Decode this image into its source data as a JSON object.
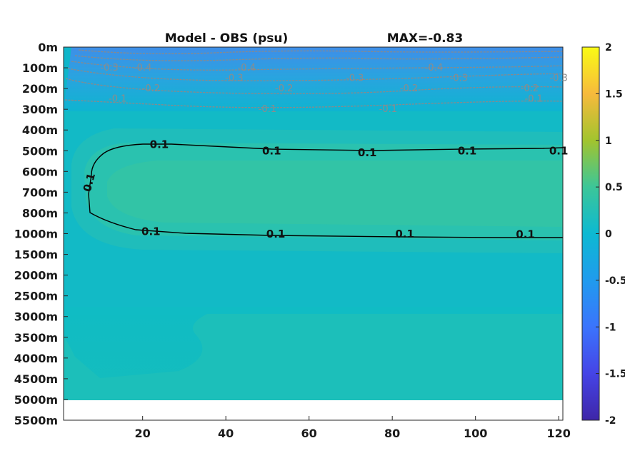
{
  "chart_data": {
    "type": "heatmap",
    "title_left": "Model - OBS (psu)",
    "title_right": "MAX=-0.83",
    "y_ticks": [
      "0m",
      "100m",
      "200m",
      "300m",
      "400m",
      "500m",
      "600m",
      "700m",
      "800m",
      "1000m",
      "1500m",
      "2000m",
      "2500m",
      "3000m",
      "3500m",
      "4000m",
      "4500m",
      "5000m",
      "5500m"
    ],
    "x_ticks": [
      "20",
      "40",
      "60",
      "80",
      "100",
      "120"
    ],
    "x_tick_values": [
      20,
      40,
      60,
      80,
      100,
      120
    ],
    "xlim": [
      1,
      121
    ],
    "colorbar": {
      "ticks": [
        "2",
        "1.5",
        "1",
        "0.5",
        "0",
        "-0.5",
        "-1",
        "-1.5",
        "-2"
      ],
      "tick_values": [
        2,
        1.5,
        1,
        0.5,
        0,
        -0.5,
        -1,
        -1.5,
        -2
      ],
      "range": [
        -2,
        2
      ],
      "colormap": "parula"
    },
    "contour_labels_negative": [
      {
        "text": "-0.3",
        "x": 12,
        "depth": "100m"
      },
      {
        "text": "-0.4",
        "x": 20,
        "depth": "100m"
      },
      {
        "text": "-0.3",
        "x": 42,
        "depth": "150m"
      },
      {
        "text": "-0.4",
        "x": 45,
        "depth": "100m"
      },
      {
        "text": "-0.3",
        "x": 71,
        "depth": "150m"
      },
      {
        "text": "-0.4",
        "x": 90,
        "depth": "100m"
      },
      {
        "text": "-0.3",
        "x": 96,
        "depth": "150m"
      },
      {
        "text": "-0.3",
        "x": 120,
        "depth": "150m"
      },
      {
        "text": "-0.2",
        "x": 22,
        "depth": "200m"
      },
      {
        "text": "-0.2",
        "x": 54,
        "depth": "200m"
      },
      {
        "text": "-0.2",
        "x": 84,
        "depth": "200m"
      },
      {
        "text": "-0.2",
        "x": 113,
        "depth": "200m"
      },
      {
        "text": "-0.1",
        "x": 14,
        "depth": "250m"
      },
      {
        "text": "-0.1",
        "x": 50,
        "depth": "300m"
      },
      {
        "text": "-0.1",
        "x": 79,
        "depth": "300m"
      },
      {
        "text": "-0.1",
        "x": 114,
        "depth": "250m"
      }
    ],
    "contour_labels_positive": [
      {
        "text": "0.1",
        "x": 24,
        "depth": "470m"
      },
      {
        "text": "0.1",
        "x": 51,
        "depth": "500m"
      },
      {
        "text": "0.1",
        "x": 74,
        "depth": "510m"
      },
      {
        "text": "0.1",
        "x": 98,
        "depth": "500m"
      },
      {
        "text": "0.1",
        "x": 120,
        "depth": "500m"
      },
      {
        "text": "0.1",
        "x": 8,
        "depth": "640m"
      },
      {
        "text": "0.1",
        "x": 22,
        "depth": "980m"
      },
      {
        "text": "0.1",
        "x": 52,
        "depth": "1010m"
      },
      {
        "text": "0.1",
        "x": 83,
        "depth": "1010m"
      },
      {
        "text": "0.1",
        "x": 112,
        "depth": "1020m"
      }
    ]
  }
}
